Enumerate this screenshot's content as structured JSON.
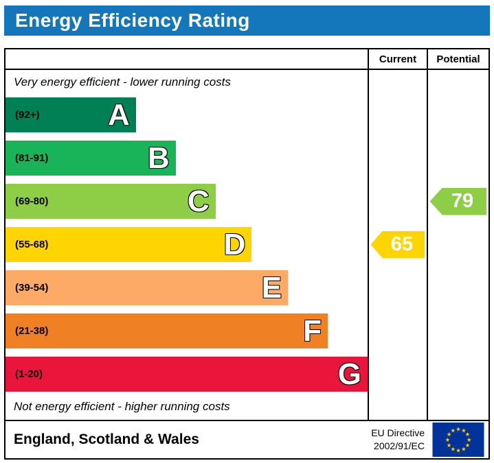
{
  "title": "Energy Efficiency Rating",
  "columns": {
    "current": "Current",
    "potential": "Potential"
  },
  "top_note": "Very energy efficient - lower running costs",
  "bottom_note": "Not energy efficient - higher running costs",
  "bands": [
    {
      "letter": "A",
      "range": "(92+)",
      "color": "#008054",
      "width_pct": 36
    },
    {
      "letter": "B",
      "range": "(81-91)",
      "color": "#19b459",
      "width_pct": 47
    },
    {
      "letter": "C",
      "range": "(69-80)",
      "color": "#8dce46",
      "width_pct": 58
    },
    {
      "letter": "D",
      "range": "(55-68)",
      "color": "#ffd500",
      "width_pct": 68
    },
    {
      "letter": "E",
      "range": "(39-54)",
      "color": "#fcaa65",
      "width_pct": 78
    },
    {
      "letter": "F",
      "range": "(21-38)",
      "color": "#ef8023",
      "width_pct": 89
    },
    {
      "letter": "G",
      "range": "(1-20)",
      "color": "#e9153b",
      "width_pct": 100
    }
  ],
  "current": {
    "value": "65",
    "color": "#ffd500",
    "band_index": 3
  },
  "potential": {
    "value": "79",
    "color": "#8dce46",
    "band_index": 2
  },
  "footer": {
    "region": "England, Scotland & Wales",
    "directive_line1": "EU Directive",
    "directive_line2": "2002/91/EC"
  },
  "flag_colors": {
    "field": "#003399",
    "stars": "#FFCC00"
  },
  "chart_data": {
    "type": "bar",
    "title": "Energy Efficiency Rating",
    "categories": [
      "A (92+)",
      "B (81-91)",
      "C (69-80)",
      "D (55-68)",
      "E (39-54)",
      "F (21-38)",
      "G (1-20)"
    ],
    "values": [
      36,
      47,
      58,
      68,
      78,
      89,
      100
    ],
    "band_colors": [
      "#008054",
      "#19b459",
      "#8dce46",
      "#ffd500",
      "#fcaa65",
      "#ef8023",
      "#e9153b"
    ],
    "series": [
      {
        "name": "Current",
        "value": 65,
        "band": "D"
      },
      {
        "name": "Potential",
        "value": 79,
        "band": "C"
      }
    ],
    "xlabel": "",
    "ylabel": "",
    "annotations": [
      "Very energy efficient - lower running costs",
      "Not energy efficient - higher running costs",
      "England, Scotland & Wales",
      "EU Directive 2002/91/EC"
    ]
  }
}
